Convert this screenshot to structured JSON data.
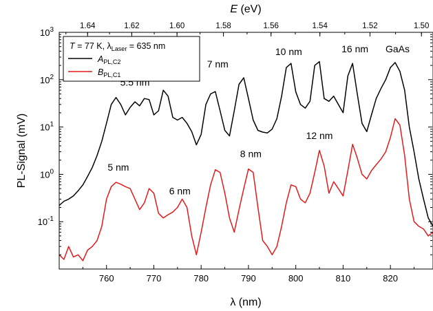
{
  "chart_data": {
    "type": "line",
    "xlabel": "λ (nm)",
    "ylabel": "PL-Signal (mV)",
    "top_axis_label": "E (eV)",
    "xlim": [
      750,
      829
    ],
    "ylim": [
      0.01,
      1000
    ],
    "y_scale": "log",
    "x_ticks": [
      760,
      770,
      780,
      790,
      800,
      810,
      820
    ],
    "y_ticks": [
      {
        "value": 0.1,
        "base": "10",
        "exp": "-1"
      },
      {
        "value": 1,
        "base": "10",
        "exp": "0"
      },
      {
        "value": 10,
        "base": "10",
        "exp": "1"
      },
      {
        "value": 100,
        "base": "10",
        "exp": "2"
      },
      {
        "value": 1000,
        "base": "10",
        "exp": "3"
      }
    ],
    "top_ticks": [
      1.64,
      1.62,
      1.6,
      1.58,
      1.56,
      1.54,
      1.52,
      1.5
    ],
    "top_tick_labels": [
      "1.64",
      "1.62",
      "1.60",
      "1.58",
      "1.56",
      "1.54",
      "1.52",
      "1.50"
    ],
    "legend": {
      "placement": "top-left",
      "condition": {
        "T": "T",
        "T_value": " = 77 K, ",
        "lambda": "λ",
        "lambda_sub": "Laser",
        "lambda_value": " = 635 nm"
      },
      "entries": [
        {
          "main": "A",
          "sub": "PL,C2",
          "color": "#000000"
        },
        {
          "main": "B",
          "sub": "PL,C1",
          "color": "#e31a1c"
        }
      ]
    },
    "annotations": [
      {
        "text": "5.5 nm",
        "x": 766,
        "y": 75
      },
      {
        "text": "7 nm",
        "x": 783.5,
        "y": 180
      },
      {
        "text": "10 nm",
        "x": 798.5,
        "y": 330
      },
      {
        "text": "16 nm",
        "x": 812.5,
        "y": 380
      },
      {
        "text": "GaAs",
        "x": 821.5,
        "y": 380
      },
      {
        "text": "5 nm",
        "x": 762.5,
        "y": 1.2
      },
      {
        "text": "6 nm",
        "x": 775.5,
        "y": 0.38
      },
      {
        "text": "8 nm",
        "x": 790.5,
        "y": 2.3
      },
      {
        "text": "12 nm",
        "x": 805,
        "y": 5.6
      }
    ],
    "series": [
      {
        "name": "A",
        "color": "#000000",
        "x": [
          750,
          751,
          752,
          753,
          754,
          755,
          756,
          757,
          758,
          759,
          760,
          761,
          762,
          763,
          764,
          765,
          766,
          767,
          768,
          769,
          770,
          771,
          772,
          773,
          774,
          775,
          776,
          777,
          778,
          779,
          780,
          781,
          782,
          783,
          784,
          785,
          786,
          787,
          788,
          789,
          790,
          791,
          792,
          793,
          794,
          795,
          796,
          797,
          798,
          799,
          800,
          801,
          802,
          803,
          804,
          805,
          806,
          807,
          808,
          809,
          810,
          811,
          812,
          813,
          814,
          815,
          816,
          817,
          818,
          819,
          820,
          821,
          822,
          823,
          824,
          825,
          826,
          827,
          828,
          829
        ],
        "y": [
          0.22,
          0.27,
          0.3,
          0.35,
          0.45,
          0.6,
          0.9,
          1.4,
          2.5,
          5,
          12,
          30,
          42,
          30,
          18,
          26,
          34,
          28,
          40,
          38,
          18,
          22,
          60,
          45,
          16,
          14,
          16,
          12,
          8,
          4.2,
          7,
          30,
          50,
          56,
          22,
          8.5,
          6.5,
          22,
          80,
          110,
          40,
          14,
          8.5,
          7.8,
          7.5,
          9,
          15,
          45,
          180,
          220,
          55,
          30,
          25,
          35,
          200,
          240,
          40,
          35,
          45,
          30,
          20,
          120,
          220,
          50,
          12,
          8,
          18,
          40,
          65,
          100,
          180,
          230,
          150,
          60,
          10,
          3,
          0.8,
          0.3,
          0.12,
          0.08
        ]
      },
      {
        "name": "B",
        "color": "#e31a1c",
        "x": [
          750,
          751,
          752,
          753,
          754,
          755,
          756,
          757,
          758,
          759,
          760,
          761,
          762,
          763,
          764,
          765,
          766,
          767,
          768,
          769,
          770,
          771,
          772,
          773,
          774,
          775,
          776,
          777,
          778,
          779,
          780,
          781,
          782,
          783,
          784,
          785,
          786,
          787,
          788,
          789,
          790,
          791,
          792,
          793,
          794,
          795,
          796,
          797,
          798,
          799,
          800,
          801,
          802,
          803,
          804,
          805,
          806,
          807,
          808,
          809,
          810,
          811,
          812,
          813,
          814,
          815,
          816,
          817,
          818,
          819,
          820,
          821,
          822,
          823,
          824,
          825,
          826,
          827,
          828,
          829
        ],
        "y": [
          0.02,
          0.016,
          0.03,
          0.018,
          0.02,
          0.015,
          0.025,
          0.03,
          0.04,
          0.08,
          0.3,
          0.55,
          0.68,
          0.62,
          0.55,
          0.5,
          0.3,
          0.18,
          0.25,
          0.5,
          0.4,
          0.15,
          0.12,
          0.14,
          0.16,
          0.2,
          0.3,
          0.2,
          0.05,
          0.02,
          0.06,
          0.2,
          0.6,
          1.25,
          1.1,
          0.4,
          0.12,
          0.06,
          0.18,
          0.5,
          1.3,
          1.1,
          0.2,
          0.04,
          0.03,
          0.02,
          0.03,
          0.08,
          0.25,
          0.6,
          0.55,
          0.3,
          0.25,
          0.4,
          1.1,
          3.2,
          1.5,
          0.4,
          0.7,
          0.5,
          0.35,
          1.2,
          4.3,
          2.2,
          1,
          0.8,
          1.2,
          1.6,
          2.1,
          3,
          6,
          15,
          11,
          2.5,
          0.3,
          0.1,
          0.08,
          0.07,
          0.05,
          0.06
        ]
      }
    ]
  }
}
